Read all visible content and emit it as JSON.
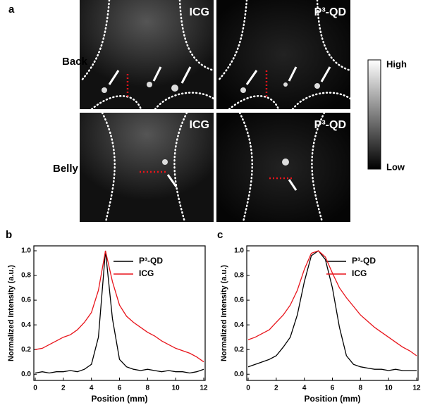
{
  "panel_a": {
    "label": "a",
    "rows": [
      "Back",
      "Belly"
    ],
    "images": [
      [
        "ICG",
        "P³-QD"
      ],
      [
        "ICG",
        "P³-QD"
      ]
    ],
    "colorbar": {
      "high": "High",
      "low": "Low"
    }
  },
  "chart_data": [
    {
      "type": "line",
      "label": "b",
      "xlabel": "Position (mm)",
      "ylabel": "Normalized Intensity (a.u.)",
      "legend": "upper right",
      "x": [
        0,
        0.5,
        1,
        1.5,
        2,
        2.5,
        3,
        3.5,
        4,
        4.5,
        5,
        5.5,
        6,
        6.5,
        7,
        7.5,
        8,
        8.5,
        9,
        9.5,
        10,
        10.5,
        11,
        11.5,
        12
      ],
      "series": [
        {
          "name": "P³-QD",
          "color": "#000000",
          "values": [
            0.01,
            0.02,
            0.01,
            0.02,
            0.02,
            0.03,
            0.02,
            0.04,
            0.08,
            0.3,
            1.0,
            0.45,
            0.12,
            0.06,
            0.04,
            0.03,
            0.04,
            0.03,
            0.02,
            0.03,
            0.02,
            0.02,
            0.01,
            0.02,
            0.04
          ]
        },
        {
          "name": "ICG",
          "color": "#e8141b",
          "values": [
            0.2,
            0.21,
            0.24,
            0.27,
            0.3,
            0.32,
            0.36,
            0.42,
            0.5,
            0.68,
            1.0,
            0.75,
            0.56,
            0.47,
            0.42,
            0.38,
            0.34,
            0.31,
            0.27,
            0.24,
            0.21,
            0.19,
            0.17,
            0.14,
            0.1
          ]
        }
      ],
      "xlim": [
        -0.1,
        12.1
      ],
      "ylim": [
        -0.05,
        1.04
      ],
      "xticks": [
        0,
        2,
        4,
        6,
        8,
        10,
        12
      ],
      "yticks": [
        {
          "value": 0,
          "label": "0.0"
        },
        0.2,
        0.4,
        0.6,
        0.8,
        {
          "value": 1,
          "label": "1.0"
        }
      ]
    },
    {
      "type": "line",
      "label": "c",
      "xlabel": "Position (mm)",
      "ylabel": "Normalized Intensity (a.u.)",
      "legend": "upper right",
      "x": [
        0,
        0.5,
        1,
        1.5,
        2,
        2.5,
        3,
        3.5,
        4,
        4.5,
        5,
        5.5,
        6,
        6.5,
        7,
        7.5,
        8,
        8.5,
        9,
        9.5,
        10,
        10.5,
        11,
        11.5,
        12
      ],
      "series": [
        {
          "name": "P³-QD",
          "color": "#000000",
          "values": [
            0.06,
            0.08,
            0.1,
            0.12,
            0.15,
            0.22,
            0.3,
            0.48,
            0.75,
            0.96,
            1.0,
            0.93,
            0.7,
            0.38,
            0.15,
            0.08,
            0.06,
            0.05,
            0.04,
            0.04,
            0.03,
            0.04,
            0.03,
            0.03,
            0.03
          ]
        },
        {
          "name": "ICG",
          "color": "#e8141b",
          "values": [
            0.28,
            0.3,
            0.33,
            0.36,
            0.42,
            0.48,
            0.56,
            0.68,
            0.85,
            0.98,
            1.0,
            0.95,
            0.82,
            0.7,
            0.62,
            0.55,
            0.48,
            0.43,
            0.38,
            0.34,
            0.3,
            0.26,
            0.22,
            0.19,
            0.15
          ]
        }
      ],
      "xlim": [
        -0.1,
        12.1
      ],
      "ylim": [
        -0.05,
        1.04
      ],
      "xticks": [
        0,
        2,
        4,
        6,
        8,
        10,
        12
      ],
      "yticks": [
        {
          "value": 0,
          "label": "0.0"
        },
        0.2,
        0.4,
        0.6,
        0.8,
        {
          "value": 1,
          "label": "1.0"
        }
      ]
    }
  ]
}
